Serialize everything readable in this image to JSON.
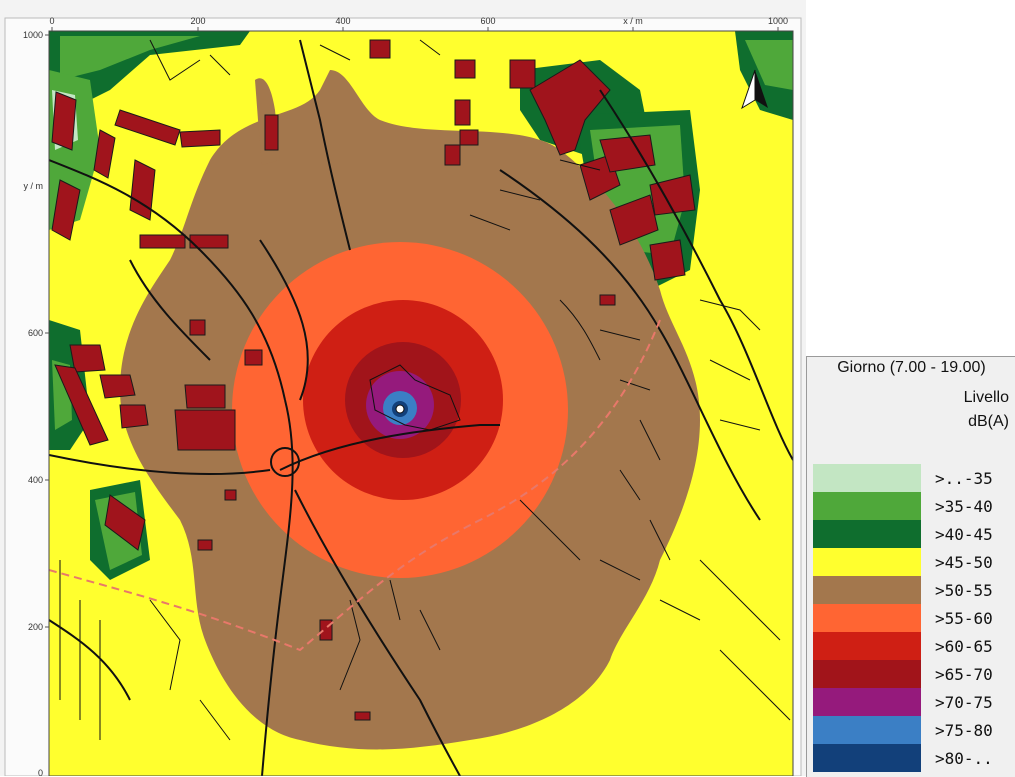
{
  "map": {
    "x_axis_label": "x / m",
    "y_axis_label": "y / m",
    "x_ticks": [
      "0",
      "200",
      "400",
      "600",
      "800",
      "1000"
    ],
    "y_ticks": [
      "1000",
      "600",
      "400",
      "200",
      "0"
    ],
    "source_marker": "o",
    "north_marker": "N"
  },
  "legend": {
    "title": "Giorno (7.00 - 19.00)",
    "subtitle_1": "Livello",
    "subtitle_2": "dB(A)",
    "items": [
      {
        "label": ">..-35",
        "color": "#c3e6c3"
      },
      {
        "label": ">35-40",
        "color": "#4fa83a"
      },
      {
        "label": ">40-45",
        "color": "#0f6e2e"
      },
      {
        "label": ">45-50",
        "color": "#ffff2e"
      },
      {
        "label": ">50-55",
        "color": "#a3774d"
      },
      {
        "label": ">55-60",
        "color": "#ff6533"
      },
      {
        "label": ">60-65",
        "color": "#cf1f14"
      },
      {
        "label": ">65-70",
        "color": "#a1141a"
      },
      {
        "label": ">70-75",
        "color": "#951a7c"
      },
      {
        "label": ">75-80",
        "color": "#3b7fc5"
      },
      {
        "label": ">80-..",
        "color": "#12407a"
      }
    ]
  },
  "colors": {
    "building": "#a0141c",
    "road": "#111111",
    "dashed_line": "#e8786a"
  }
}
